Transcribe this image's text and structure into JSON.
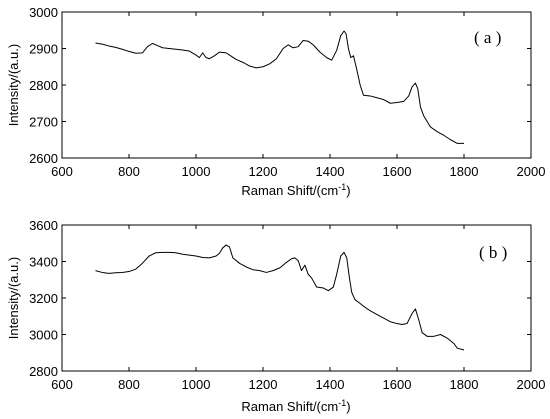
{
  "chart_data": [
    {
      "type": "line",
      "panel_label": "( a )",
      "xlabel": "Raman Shift/(cm",
      "xlabel_sup": "-1",
      "xlabel_end": ")",
      "ylabel": "Intensity/(a.u.)",
      "xlim": [
        600,
        2000
      ],
      "ylim": [
        2600,
        3000
      ],
      "xticks": [
        600,
        800,
        1000,
        1200,
        1400,
        1600,
        1800,
        2000
      ],
      "yticks": [
        2600,
        2700,
        2800,
        2900,
        3000
      ],
      "grid": false,
      "x": [
        700,
        720,
        740,
        760,
        780,
        800,
        820,
        840,
        855,
        870,
        885,
        900,
        920,
        940,
        960,
        980,
        1000,
        1010,
        1020,
        1030,
        1040,
        1055,
        1070,
        1090,
        1100,
        1120,
        1140,
        1160,
        1180,
        1200,
        1220,
        1240,
        1260,
        1275,
        1290,
        1305,
        1320,
        1335,
        1350,
        1370,
        1390,
        1405,
        1420,
        1432,
        1442,
        1448,
        1455,
        1462,
        1470,
        1480,
        1490,
        1500,
        1520,
        1540,
        1560,
        1580,
        1600,
        1620,
        1635,
        1645,
        1655,
        1662,
        1670,
        1680,
        1690,
        1700,
        1720,
        1740,
        1760,
        1780,
        1800
      ],
      "y": [
        2915,
        2912,
        2907,
        2903,
        2898,
        2892,
        2887,
        2888,
        2905,
        2914,
        2908,
        2902,
        2900,
        2898,
        2896,
        2893,
        2882,
        2875,
        2888,
        2875,
        2872,
        2880,
        2890,
        2888,
        2882,
        2870,
        2862,
        2852,
        2847,
        2850,
        2858,
        2872,
        2900,
        2910,
        2902,
        2905,
        2922,
        2920,
        2910,
        2890,
        2875,
        2868,
        2895,
        2935,
        2948,
        2940,
        2900,
        2875,
        2880,
        2842,
        2800,
        2772,
        2770,
        2765,
        2760,
        2750,
        2752,
        2755,
        2770,
        2795,
        2805,
        2790,
        2740,
        2715,
        2700,
        2685,
        2672,
        2662,
        2650,
        2640,
        2640
      ]
    },
    {
      "type": "line",
      "panel_label": "( b )",
      "xlabel": "Raman Shift/(cm",
      "xlabel_sup": "-1",
      "xlabel_end": ")",
      "ylabel": "Intensity/(a.u.)",
      "xlim": [
        600,
        2000
      ],
      "ylim": [
        2800,
        3600
      ],
      "xticks": [
        600,
        800,
        1000,
        1200,
        1400,
        1600,
        1800,
        2000
      ],
      "yticks": [
        2800,
        3000,
        3200,
        3400,
        3600
      ],
      "grid": false,
      "x": [
        700,
        720,
        740,
        760,
        780,
        800,
        820,
        840,
        860,
        880,
        900,
        920,
        940,
        960,
        980,
        1000,
        1020,
        1040,
        1060,
        1070,
        1080,
        1090,
        1100,
        1110,
        1130,
        1150,
        1170,
        1190,
        1210,
        1230,
        1250,
        1270,
        1285,
        1295,
        1305,
        1315,
        1325,
        1335,
        1345,
        1360,
        1380,
        1395,
        1410,
        1420,
        1432,
        1442,
        1450,
        1458,
        1465,
        1475,
        1490,
        1500,
        1520,
        1540,
        1560,
        1580,
        1600,
        1615,
        1630,
        1645,
        1655,
        1665,
        1675,
        1690,
        1710,
        1730,
        1750,
        1770,
        1780,
        1800
      ],
      "y": [
        3350,
        3340,
        3335,
        3338,
        3340,
        3345,
        3358,
        3390,
        3430,
        3448,
        3450,
        3450,
        3448,
        3440,
        3435,
        3430,
        3422,
        3420,
        3430,
        3445,
        3475,
        3490,
        3480,
        3420,
        3390,
        3370,
        3355,
        3350,
        3340,
        3350,
        3365,
        3395,
        3415,
        3420,
        3405,
        3350,
        3380,
        3330,
        3310,
        3260,
        3255,
        3240,
        3260,
        3330,
        3430,
        3450,
        3420,
        3310,
        3230,
        3190,
        3170,
        3155,
        3130,
        3110,
        3090,
        3070,
        3060,
        3055,
        3060,
        3115,
        3140,
        3080,
        3010,
        2990,
        2990,
        3000,
        2980,
        2950,
        2925,
        2915
      ]
    }
  ]
}
